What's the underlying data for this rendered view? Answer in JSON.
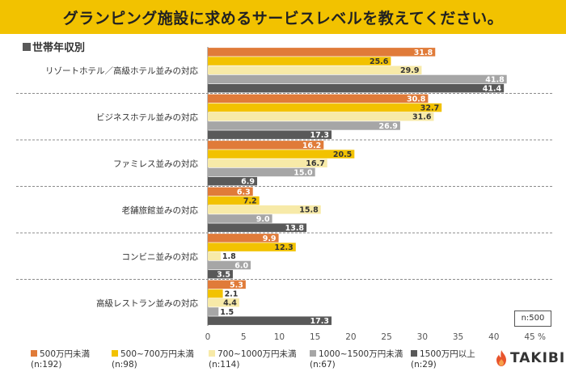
{
  "title": "グランピング施設に求めるサービスレベルを教えてください。",
  "subtitle": "世帯年収別",
  "sample_note": "n:500",
  "brand": "TAKIBI",
  "chart_data": {
    "type": "bar",
    "orientation": "horizontal",
    "categories": [
      "リゾートホテル／高級ホテル並みの対応",
      "ビジネスホテル並みの対応",
      "ファミレス並みの対応",
      "老舗旅館並みの対応",
      "コンビニ並みの対応",
      "高級レストラン並みの対応"
    ],
    "series": [
      {
        "name": "500万円未満",
        "n": "(n:192)",
        "color": "#e07b39",
        "values": [
          31.8,
          30.8,
          16.2,
          6.3,
          9.9,
          5.3
        ]
      },
      {
        "name": "500~700万円未満",
        "n": "(n:98)",
        "color": "#f2c200",
        "values": [
          25.6,
          32.7,
          20.5,
          7.2,
          12.3,
          2.1
        ]
      },
      {
        "name": "700~1000万円未満",
        "n": "(n:114)",
        "color": "#f7eaa8",
        "values": [
          29.9,
          31.6,
          16.7,
          15.8,
          1.8,
          4.4
        ]
      },
      {
        "name": "1000~1500万円未満",
        "n": "(n:67)",
        "color": "#a6a6a6",
        "values": [
          41.8,
          26.9,
          15.0,
          9.0,
          6.0,
          1.5
        ]
      },
      {
        "name": "1500万円以上",
        "n": "(n:29)",
        "color": "#595959",
        "values": [
          41.4,
          17.3,
          6.9,
          13.8,
          3.5,
          17.3
        ]
      }
    ],
    "x_ticks": [
      "0",
      "5",
      "10",
      "15",
      "20",
      "25",
      "30",
      "35",
      "40",
      "45"
    ],
    "x_unit": "%",
    "xlim": [
      0,
      45
    ],
    "grid": false,
    "legend_position": "bottom"
  }
}
